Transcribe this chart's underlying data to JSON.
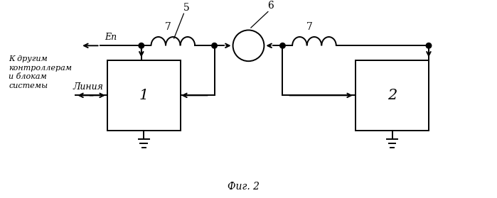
{
  "title": "Фиг. 2",
  "label_ep": "Еп",
  "label_linia": "Линия",
  "label_left": "К другим\nконтроллерам\nи блокам\nсистемы",
  "label_block1": "1",
  "label_block2": "2",
  "label_5": "5",
  "label_6": "6",
  "label_7a": "7",
  "label_7b": "7",
  "bg_color": "#ffffff",
  "line_color": "#000000",
  "fig_width": 6.99,
  "fig_height": 2.79,
  "dpi": 100
}
